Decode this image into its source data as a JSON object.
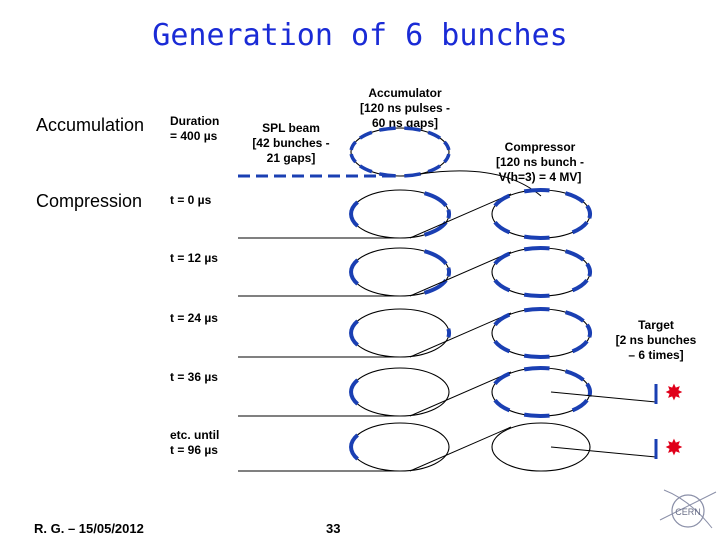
{
  "title": "Generation of 6 bunches",
  "labels": {
    "accumulation": "Accumulation",
    "compression": "Compression",
    "duration_line1": "Duration",
    "duration_line2": "= 400 µs",
    "spl_line1": "SPL beam",
    "spl_line2": "[42 bunches -",
    "spl_line3": "21 gaps]",
    "accumulator_line1": "Accumulator",
    "accumulator_line2": "[120 ns pulses -",
    "accumulator_line3": "60 ns gaps]",
    "compressor_line1": "Compressor",
    "compressor_line2": "[120 ns bunch -",
    "compressor_line3": "V(h=3) = 4 MV]",
    "target_line1": "Target",
    "target_line2": "[2 ns bunches",
    "target_line3": "– 6 times]"
  },
  "times": {
    "t0": "t = 0 µs",
    "t12": "t = 12 µs",
    "t24": "t = 24 µs",
    "t36": "t = 36 µs",
    "until_line1": "etc. until",
    "until_line2": "t = 96 µs"
  },
  "footer": {
    "author": "R. G. – 15/05/2012",
    "page": "33"
  },
  "colors": {
    "title": "#1a2bd6",
    "bunch": "#1a3fb3",
    "target": "#e0001a",
    "line": "#000000"
  }
}
